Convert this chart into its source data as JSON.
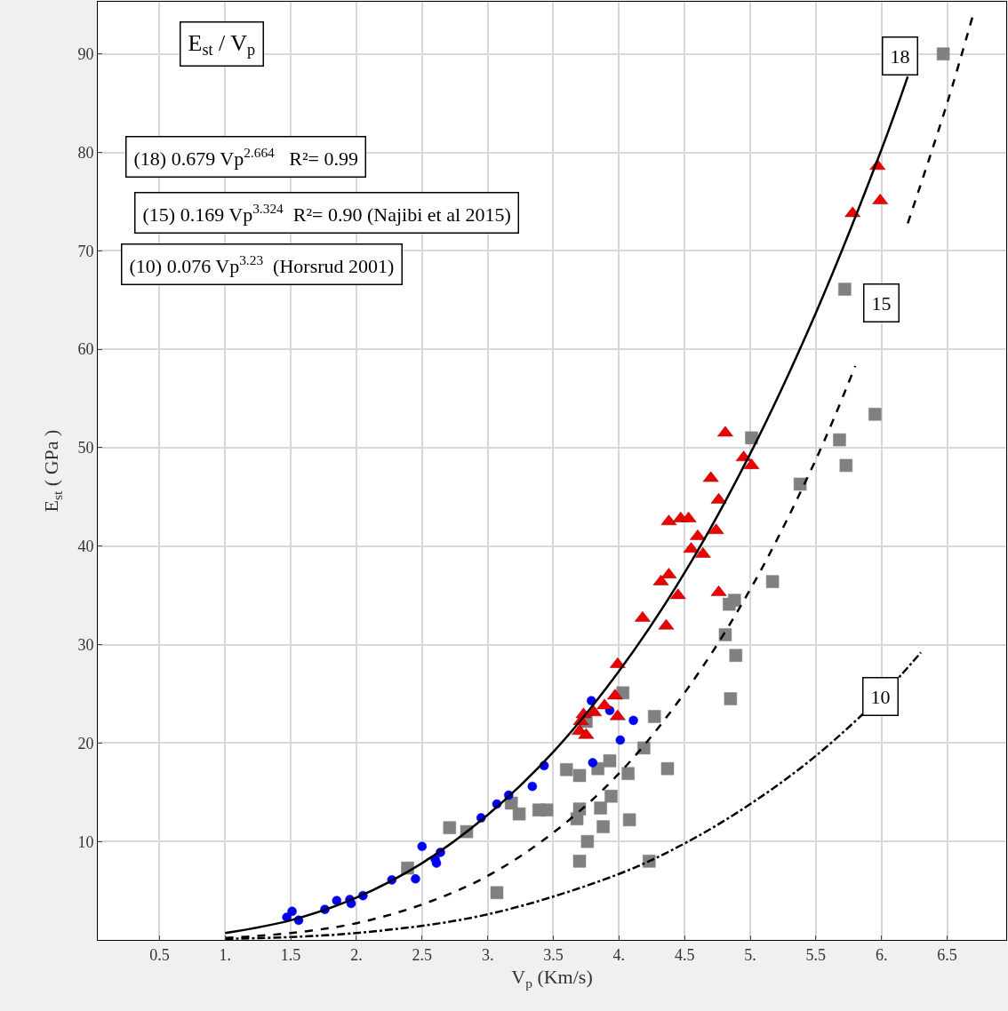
{
  "chart_data": {
    "type": "scatter",
    "xlabel": "V$_{p}$ (Km/s)",
    "ylabel": "E$_{st}$ ( GPa )",
    "xlim": [
      0.03,
      6.95
    ],
    "ylim": [
      0,
      95.3
    ],
    "xticks": [
      {
        "value": 0.5,
        "label": "0.5"
      },
      {
        "value": 1,
        "label": "1."
      },
      {
        "value": 1.5,
        "label": "1.5"
      },
      {
        "value": 2,
        "label": "2."
      },
      {
        "value": 2.5,
        "label": "2.5"
      },
      {
        "value": 3,
        "label": "3."
      },
      {
        "value": 3.5,
        "label": "3.5"
      },
      {
        "value": 4,
        "label": "4."
      },
      {
        "value": 4.5,
        "label": "4.5"
      },
      {
        "value": 5,
        "label": "5."
      },
      {
        "value": 5.5,
        "label": "5.5"
      },
      {
        "value": 6,
        "label": "6."
      },
      {
        "value": 6.5,
        "label": "6.5"
      }
    ],
    "yticks": [
      10,
      20,
      30,
      40,
      50,
      60,
      70,
      80,
      90
    ],
    "grid": true,
    "series": [
      {
        "marker": "square",
        "color": "#808080",
        "x": [
          6.47,
          5.72,
          5.95,
          5.68,
          5.73,
          5.38,
          5.01,
          5.17,
          4.84,
          4.88,
          4.81,
          4.89,
          4.85,
          4.03,
          4.27,
          4.19,
          4.37,
          3.93,
          4.07,
          3.84,
          3.6,
          3.7,
          3.94,
          3.7,
          3.86,
          3.68,
          3.88,
          4.08,
          3.76,
          3.7,
          4.23,
          3.45,
          3.39,
          2.71,
          2.84,
          2.39,
          3.07,
          3.18,
          3.24,
          3.75
        ],
        "values": [
          90.0,
          66.1,
          53.4,
          50.8,
          48.2,
          46.3,
          51.0,
          36.4,
          34.1,
          34.5,
          31.0,
          28.9,
          24.5,
          25.1,
          22.7,
          19.5,
          17.4,
          18.2,
          16.9,
          17.4,
          17.3,
          16.7,
          14.6,
          13.3,
          13.4,
          12.3,
          11.5,
          12.2,
          10.0,
          8.0,
          8.0,
          13.2,
          13.2,
          11.4,
          11.0,
          7.3,
          4.8,
          13.9,
          12.8,
          22.2
        ]
      },
      {
        "marker": "circle",
        "color": "#0000ee",
        "x": [
          1.47,
          1.51,
          1.56,
          1.76,
          1.85,
          1.95,
          1.96,
          2.05,
          2.27,
          2.45,
          2.5,
          2.61,
          2.6,
          2.64,
          2.95,
          3.07,
          3.16,
          3.34,
          3.43,
          3.8,
          3.79,
          3.93,
          4.01,
          4.11
        ],
        "values": [
          2.3,
          2.9,
          2.0,
          3.1,
          4.0,
          4.1,
          3.7,
          4.5,
          6.1,
          6.2,
          9.5,
          7.8,
          8.2,
          8.9,
          12.4,
          13.8,
          14.7,
          15.6,
          17.7,
          18.0,
          24.3,
          23.3,
          20.3,
          22.3
        ]
      },
      {
        "marker": "triangle",
        "color": "#ee0000",
        "x": [
          4.81,
          4.95,
          5.01,
          4.7,
          4.76,
          4.38,
          4.47,
          4.53,
          4.74,
          4.6,
          4.55,
          4.64,
          4.38,
          4.32,
          4.45,
          4.76,
          4.18,
          4.36,
          3.99,
          3.97,
          3.99,
          3.81,
          3.89,
          3.71,
          3.7,
          3.75,
          3.73,
          5.97,
          5.99,
          5.78
        ],
        "values": [
          51.5,
          49.0,
          48.2,
          46.9,
          44.7,
          42.5,
          42.8,
          42.8,
          41.6,
          41.0,
          39.7,
          39.2,
          37.1,
          36.4,
          35.0,
          35.3,
          32.7,
          31.9,
          28.0,
          24.8,
          22.7,
          23.1,
          23.8,
          22.2,
          21.2,
          20.8,
          22.9,
          78.6,
          75.1,
          73.8
        ]
      },
      {
        "type": "line",
        "line_style": "solid",
        "color": "#000000",
        "x": [
          1.0,
          1.5,
          2.0,
          2.5,
          3.0,
          3.5,
          4.0,
          4.5,
          5.0,
          5.5,
          6.0,
          6.2
        ],
        "values": [
          0.7,
          2.0,
          4.3,
          7.8,
          12.7,
          19.1,
          27.3,
          37.3,
          49.4,
          63.7,
          80.3,
          87.7
        ]
      },
      {
        "type": "line",
        "line_style": "dashed",
        "color": "#000000",
        "x": [
          1.0,
          1.5,
          2.0,
          2.5,
          3.0,
          3.5,
          4.0,
          4.5,
          5.0,
          5.5,
          5.8,
          6.0,
          6.2,
          6.5,
          6.7
        ],
        "values": [
          0.2,
          0.7,
          1.7,
          3.6,
          6.5,
          10.9,
          16.9,
          25.1,
          35.6,
          48.8,
          58.3,
          null,
          72.8,
          85.0,
          94.1
        ]
      },
      {
        "type": "line",
        "line_style": "dashdot",
        "color": "#000000",
        "x": [
          1.0,
          2.0,
          3.0,
          4.0,
          4.5,
          5.0,
          5.5,
          6.0,
          6.3
        ],
        "values": [
          0.1,
          0.7,
          2.6,
          6.7,
          9.8,
          13.8,
          18.7,
          24.8,
          29.2
        ]
      }
    ],
    "annotations": [
      "E$_{st}$ / V$_{p}$",
      "(18) 0.679 Vp$^{2.664}$   R²= 0.99",
      "(15) 0.169 Vp$^{3.324}$  R²= 0.90 (Najibi et al 2015)",
      "(10) 0.076 Vp$^{3.23}$  (Horsrud 2001)",
      {
        "text": "18",
        "x": 6.14,
        "y": 89.8
      },
      {
        "text": "15",
        "x": 6.0,
        "y": 64.7
      },
      {
        "text": "10",
        "x": 5.99,
        "y": 24.7
      }
    ]
  }
}
